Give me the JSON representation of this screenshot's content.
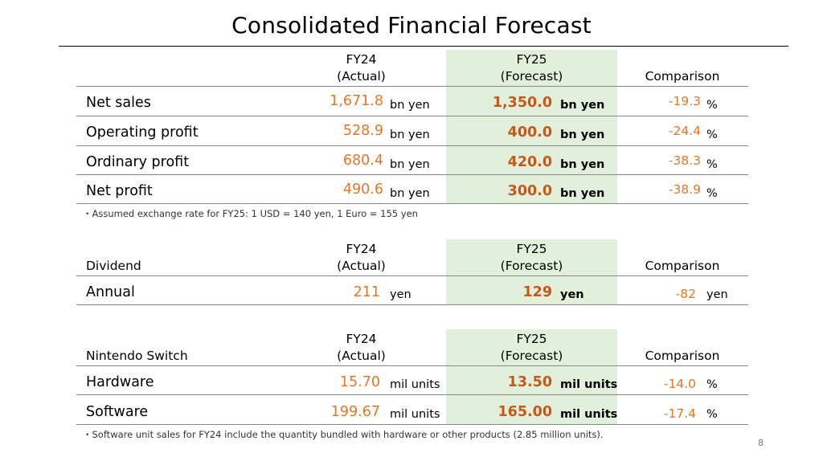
{
  "title": "Consolidated Financial Forecast",
  "col_fy24_line1": "FY24",
  "col_fy24_line2": "(Actual)",
  "col_fy25_line1": "FY25",
  "col_fy25_line2": "(Forecast)",
  "col_comparison": "Comparison",
  "colors": {
    "band": "#e2efda",
    "actual": "#e67627",
    "forecast": "#c4591b"
  },
  "financial": {
    "rows": [
      {
        "label": "Net sales",
        "actual": "1,671.8",
        "actual_unit": "bn yen",
        "forecast": "1,350.0",
        "forecast_unit": "bn yen",
        "comparison": "-19.3",
        "comparison_unit": "%"
      },
      {
        "label": "Operating profit",
        "actual": "528.9",
        "actual_unit": "bn yen",
        "forecast": "400.0",
        "forecast_unit": "bn yen",
        "comparison": "-24.4",
        "comparison_unit": "%"
      },
      {
        "label": "Ordinary profit",
        "actual": "680.4",
        "actual_unit": "bn yen",
        "forecast": "420.0",
        "forecast_unit": "bn yen",
        "comparison": "-38.3",
        "comparison_unit": "%"
      },
      {
        "label": "Net profit",
        "actual": "490.6",
        "actual_unit": "bn yen",
        "forecast": "300.0",
        "forecast_unit": "bn yen",
        "comparison": "-38.9",
        "comparison_unit": "%"
      }
    ],
    "note": "・Assumed exchange rate for FY25: 1 USD = 140 yen, 1 Euro = 155 yen"
  },
  "dividend": {
    "section_label": "Dividend",
    "rows": [
      {
        "label": "Annual",
        "actual": "211",
        "actual_unit": "yen",
        "forecast": "129",
        "forecast_unit": "yen",
        "comparison": "-82",
        "comparison_unit": "yen"
      }
    ]
  },
  "switch": {
    "section_label": "Nintendo Switch",
    "rows": [
      {
        "label": "Hardware",
        "actual": "15.70",
        "actual_unit": "mil units",
        "forecast": "13.50",
        "forecast_unit": "mil units",
        "comparison": "-14.0",
        "comparison_unit": "%"
      },
      {
        "label": "Software",
        "actual": "199.67",
        "actual_unit": "mil units",
        "forecast": "165.00",
        "forecast_unit": "mil units",
        "comparison": "-17.4",
        "comparison_unit": "%"
      }
    ],
    "note": "・Software unit sales for FY24 include the quantity bundled with hardware or other products (2.85 million units)."
  },
  "page_number": "8"
}
